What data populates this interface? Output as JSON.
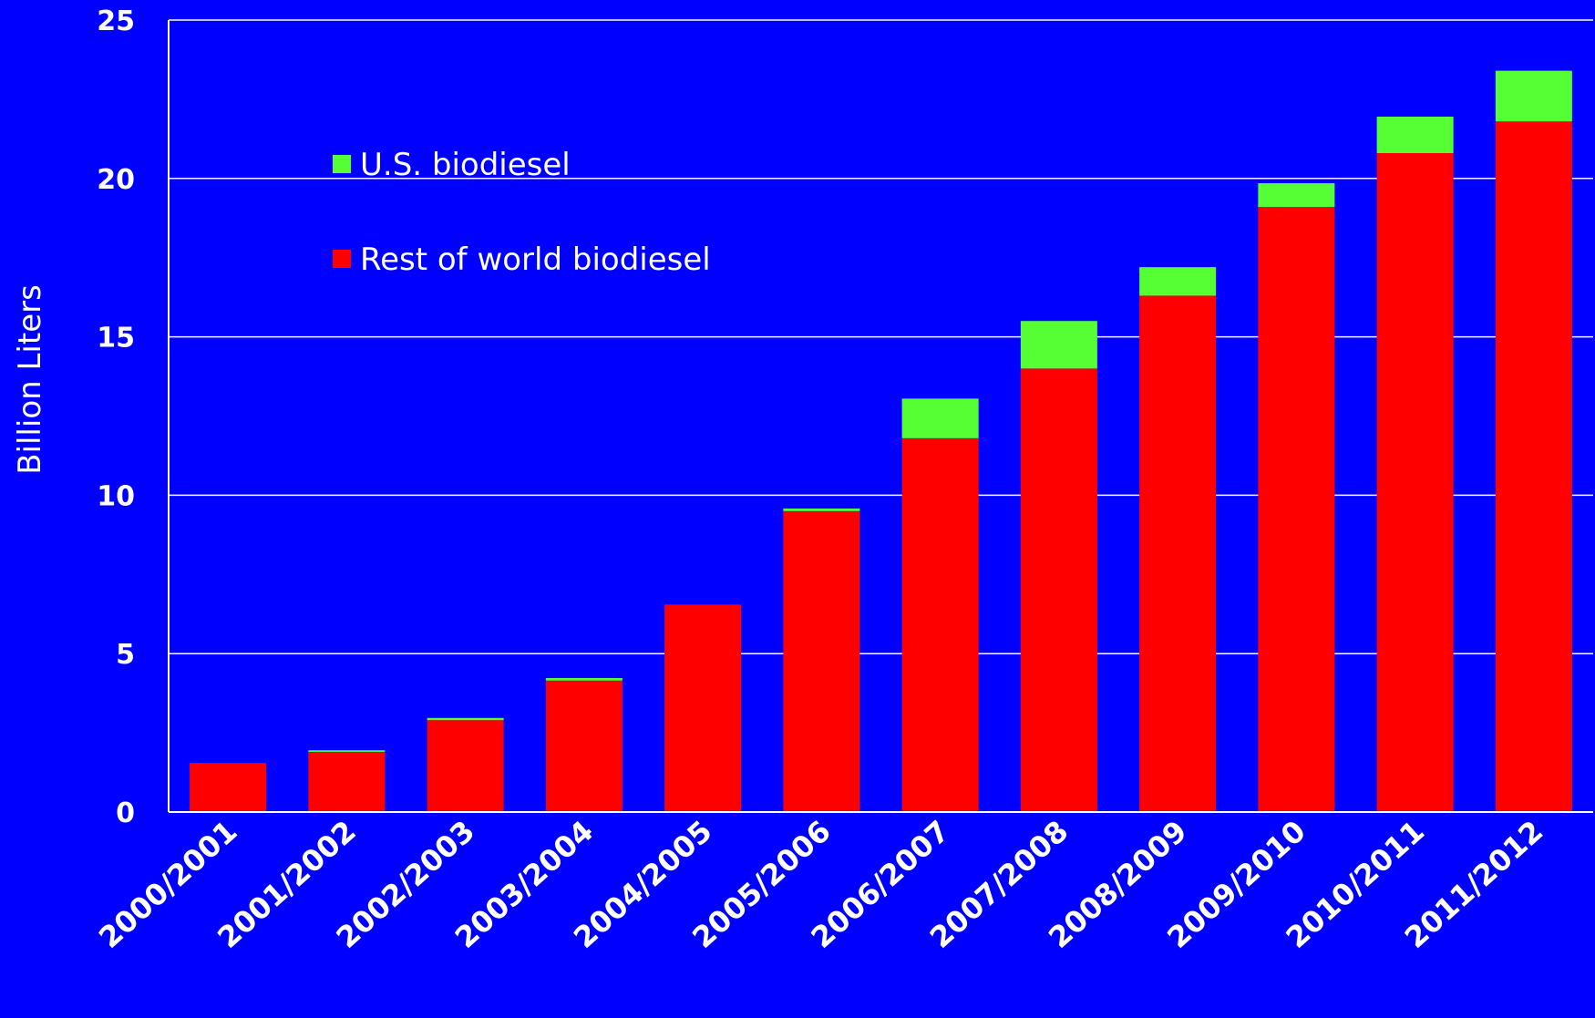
{
  "chart_data": {
    "type": "bar",
    "stacked": true,
    "title": "",
    "xlabel": "",
    "ylabel": "Billion Liters",
    "ylim": [
      0,
      25
    ],
    "yticks": [
      0,
      5,
      10,
      15,
      20,
      25
    ],
    "grid": true,
    "legend_position": "top-left",
    "categories": [
      "2000/2001",
      "2001/2002",
      "2002/2003",
      "2003/2004",
      "2004/2005",
      "2005/2006",
      "2006/2007",
      "2007/2008",
      "2008/2009",
      "2009/2010",
      "2010/2011",
      "2011/2012"
    ],
    "series": [
      {
        "name": "Rest of world biodiesel",
        "color": "#ff0000",
        "values": [
          1.55,
          1.9,
          2.9,
          4.15,
          6.55,
          9.5,
          11.8,
          14.0,
          16.3,
          19.1,
          20.8,
          21.8
        ]
      },
      {
        "name": "U.S. biodiesel",
        "color": "#55ff33",
        "values": [
          0.0,
          0.05,
          0.07,
          0.08,
          0.0,
          0.08,
          1.25,
          1.5,
          0.9,
          0.75,
          1.15,
          1.6
        ]
      }
    ],
    "legend_order": [
      1,
      0
    ],
    "colors": {
      "background": "#0000ff",
      "grid": "#ffffff",
      "text": "#ffffff"
    }
  }
}
